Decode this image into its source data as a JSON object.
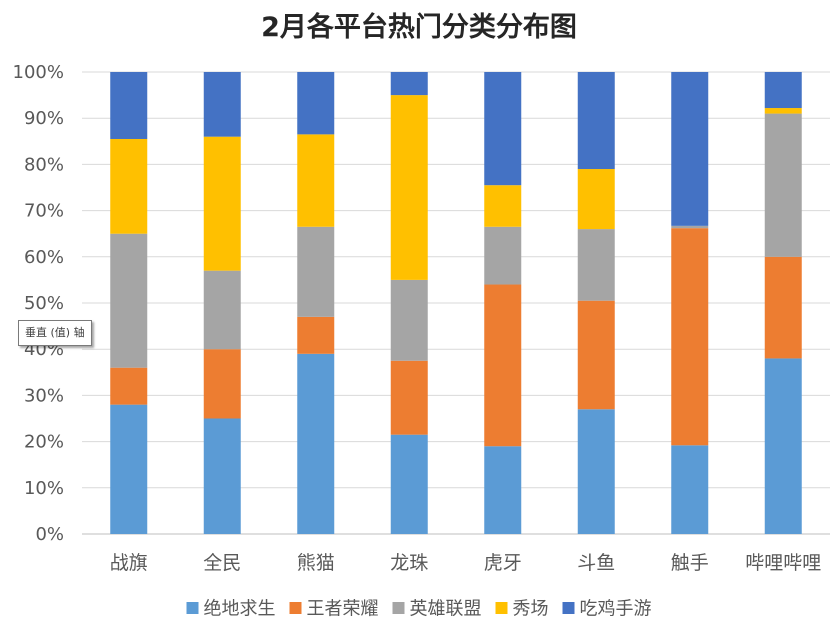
{
  "chart_data": {
    "type": "bar",
    "stacked": true,
    "title": "2月各平台热门分类分布图",
    "categories": [
      "战旗",
      "全民",
      "熊猫",
      "龙珠",
      "虎牙",
      "斗鱼",
      "触手",
      "哔哩哔哩"
    ],
    "ylim": [
      0,
      100
    ],
    "yticks": [
      "0%",
      "10%",
      "20%",
      "30%",
      "40%",
      "50%",
      "60%",
      "70%",
      "80%",
      "90%",
      "100%"
    ],
    "grid": true,
    "legend_position": "bottom",
    "series": [
      {
        "name": "绝地求生",
        "color": "#5b9bd5",
        "values": [
          28,
          25,
          39,
          21.5,
          19,
          27,
          19.2,
          38
        ]
      },
      {
        "name": "王者荣耀",
        "color": "#ed7d31",
        "values": [
          8,
          15,
          8,
          16,
          35,
          23.5,
          47,
          22
        ]
      },
      {
        "name": "英雄联盟",
        "color": "#a5a5a5",
        "values": [
          29,
          17,
          19.5,
          17.5,
          12.5,
          15.5,
          0.5,
          31
        ]
      },
      {
        "name": "秀场",
        "color": "#ffc000",
        "values": [
          20.5,
          29,
          20,
          40,
          9,
          13,
          0,
          1.2
        ]
      },
      {
        "name": "吃鸡手游",
        "color": "#4472c4",
        "values": [
          14.5,
          14,
          13.5,
          5,
          24.5,
          21,
          33.3,
          7.8
        ]
      }
    ]
  },
  "tooltip": "垂直 (值) 轴"
}
